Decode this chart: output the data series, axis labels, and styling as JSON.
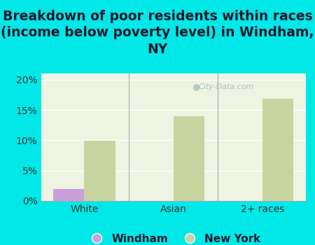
{
  "title": "Breakdown of poor residents within races\n(income below poverty level) in Windham,\nNY",
  "categories": [
    "White",
    "Asian",
    "2+ races"
  ],
  "windham_values": [
    2.0,
    0,
    0
  ],
  "newyork_values": [
    9.9,
    14.0,
    16.8
  ],
  "windham_color": "#c9a0dc",
  "newyork_color": "#c8d4a0",
  "background_color": "#00e8e8",
  "plot_bg_color": "#eef3e2",
  "ylim": [
    0,
    21
  ],
  "yticks": [
    0,
    5,
    10,
    15,
    20
  ],
  "ytick_labels": [
    "0%",
    "5%",
    "10%",
    "15%",
    "20%"
  ],
  "bar_width": 0.35,
  "title_fontsize": 13.5,
  "tick_fontsize": 10,
  "legend_fontsize": 11,
  "watermark": "City-Data.com"
}
